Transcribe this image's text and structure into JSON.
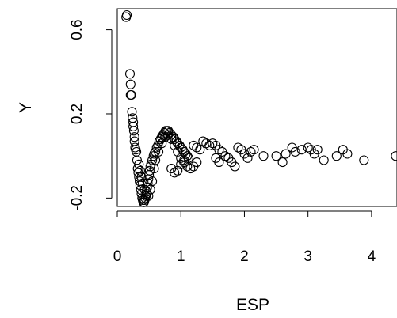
{
  "chart_data": {
    "type": "scatter",
    "title": "",
    "xlabel": "ESP",
    "ylabel": "Y",
    "xlim": [
      0,
      4.4
    ],
    "ylim": [
      -0.24,
      0.7
    ],
    "x_ticks": [
      0,
      1,
      2,
      3,
      4
    ],
    "x_tick_labels": [
      "0",
      "1",
      "2",
      "3",
      "4"
    ],
    "y_ticks": [
      -0.2,
      0.2,
      0.6
    ],
    "y_tick_labels": [
      "-0.2",
      "0.2",
      "0.6"
    ],
    "grid": false,
    "legend": "none",
    "point_style": "open-circle",
    "colors": {
      "points": "#000000",
      "axes": "#000000",
      "background": "#ffffff"
    },
    "points": [
      [
        0.14,
        0.66
      ],
      [
        0.15,
        0.67
      ],
      [
        0.2,
        0.39
      ],
      [
        0.21,
        0.34
      ],
      [
        0.21,
        0.29
      ],
      [
        0.22,
        0.29
      ],
      [
        0.23,
        0.21
      ],
      [
        0.24,
        0.18
      ],
      [
        0.25,
        0.16
      ],
      [
        0.25,
        0.14
      ],
      [
        0.26,
        0.12
      ],
      [
        0.27,
        0.09
      ],
      [
        0.27,
        0.07
      ],
      [
        0.28,
        0.04
      ],
      [
        0.29,
        0.03
      ],
      [
        0.3,
        0.02
      ],
      [
        0.31,
        -0.02
      ],
      [
        0.32,
        -0.06
      ],
      [
        0.33,
        -0.08
      ],
      [
        0.34,
        -0.1
      ],
      [
        0.35,
        -0.12
      ],
      [
        0.36,
        -0.14
      ],
      [
        0.37,
        -0.16
      ],
      [
        0.38,
        -0.18
      ],
      [
        0.39,
        -0.2
      ],
      [
        0.4,
        -0.21
      ],
      [
        0.41,
        -0.22
      ],
      [
        0.42,
        -0.22
      ],
      [
        0.43,
        -0.21
      ],
      [
        0.44,
        -0.2
      ],
      [
        0.45,
        -0.19
      ],
      [
        0.46,
        -0.17
      ],
      [
        0.47,
        -0.15
      ],
      [
        0.48,
        -0.13
      ],
      [
        0.49,
        -0.11
      ],
      [
        0.5,
        -0.09
      ],
      [
        0.51,
        -0.07
      ],
      [
        0.52,
        -0.05
      ],
      [
        0.53,
        -0.04
      ],
      [
        0.55,
        -0.02
      ],
      [
        0.57,
        0.0
      ],
      [
        0.58,
        0.01
      ],
      [
        0.6,
        0.02
      ],
      [
        0.62,
        0.04
      ],
      [
        0.64,
        0.05
      ],
      [
        0.66,
        0.07
      ],
      [
        0.68,
        0.08
      ],
      [
        0.7,
        0.09
      ],
      [
        0.72,
        0.1
      ],
      [
        0.74,
        0.11
      ],
      [
        0.76,
        0.12
      ],
      [
        0.78,
        0.12
      ],
      [
        0.8,
        0.12
      ],
      [
        0.82,
        0.11
      ],
      [
        0.85,
        0.1
      ],
      [
        0.88,
        0.09
      ],
      [
        0.9,
        0.08
      ],
      [
        0.93,
        0.07
      ],
      [
        0.95,
        0.06
      ],
      [
        0.98,
        0.05
      ],
      [
        1.0,
        0.04
      ],
      [
        1.03,
        0.03
      ],
      [
        1.05,
        0.02
      ],
      [
        1.08,
        0.01
      ],
      [
        1.1,
        0.0
      ],
      [
        1.12,
        -0.01
      ],
      [
        0.34,
        -0.04
      ],
      [
        0.36,
        -0.07
      ],
      [
        0.38,
        -0.1
      ],
      [
        0.4,
        -0.13
      ],
      [
        0.43,
        -0.16
      ],
      [
        0.46,
        -0.18
      ],
      [
        0.49,
        -0.19
      ],
      [
        0.52,
        -0.16
      ],
      [
        0.55,
        -0.12
      ],
      [
        0.58,
        -0.06
      ],
      [
        0.6,
        -0.02
      ],
      [
        0.65,
        0.02
      ],
      [
        0.7,
        0.06
      ],
      [
        0.75,
        0.09
      ],
      [
        0.8,
        0.1
      ],
      [
        0.85,
        0.08
      ],
      [
        0.9,
        0.05
      ],
      [
        0.95,
        0.02
      ],
      [
        1.0,
        -0.01
      ],
      [
        1.05,
        -0.03
      ],
      [
        1.1,
        -0.05
      ],
      [
        1.15,
        -0.06
      ],
      [
        1.2,
        -0.05
      ],
      [
        1.25,
        -0.03
      ],
      [
        0.85,
        -0.06
      ],
      [
        0.9,
        -0.08
      ],
      [
        0.95,
        -0.07
      ],
      [
        1.0,
        -0.04
      ],
      [
        1.05,
        -0.02
      ],
      [
        1.2,
        0.05
      ],
      [
        1.25,
        0.04
      ],
      [
        1.3,
        0.03
      ],
      [
        1.35,
        0.07
      ],
      [
        1.4,
        0.06
      ],
      [
        1.45,
        0.05
      ],
      [
        1.5,
        0.06
      ],
      [
        1.55,
        0.05
      ],
      [
        1.6,
        0.03
      ],
      [
        1.65,
        0.02
      ],
      [
        1.7,
        0.0
      ],
      [
        1.75,
        -0.01
      ],
      [
        1.55,
        -0.01
      ],
      [
        1.6,
        -0.03
      ],
      [
        1.8,
        -0.03
      ],
      [
        1.85,
        -0.05
      ],
      [
        1.9,
        0.04
      ],
      [
        1.95,
        0.03
      ],
      [
        2.0,
        0.01
      ],
      [
        2.05,
        -0.01
      ],
      [
        2.1,
        0.02
      ],
      [
        2.15,
        0.03
      ],
      [
        2.3,
        0.0
      ],
      [
        2.5,
        0.0
      ],
      [
        2.6,
        -0.03
      ],
      [
        2.65,
        0.01
      ],
      [
        2.75,
        0.04
      ],
      [
        2.8,
        0.02
      ],
      [
        2.9,
        0.03
      ],
      [
        3.0,
        0.04
      ],
      [
        3.05,
        0.03
      ],
      [
        3.1,
        0.01
      ],
      [
        3.15,
        0.03
      ],
      [
        3.25,
        -0.02
      ],
      [
        3.45,
        0.0
      ],
      [
        3.55,
        0.03
      ],
      [
        3.62,
        0.01
      ],
      [
        3.88,
        -0.02
      ],
      [
        4.38,
        0.0
      ]
    ]
  }
}
